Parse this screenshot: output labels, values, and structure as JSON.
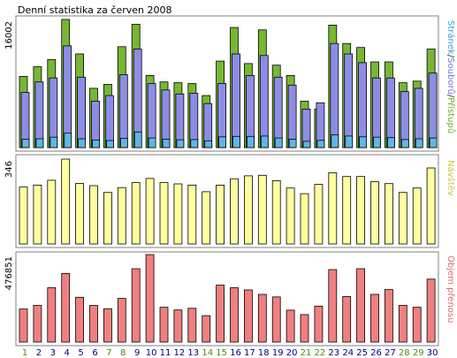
{
  "chart_data": {
    "title": "Denní statistika za červen 2008",
    "type": "bar",
    "days": [
      "1",
      "2",
      "3",
      "4",
      "5",
      "6",
      "7",
      "8",
      "9",
      "10",
      "11",
      "12",
      "13",
      "14",
      "15",
      "16",
      "17",
      "18",
      "19",
      "20",
      "21",
      "22",
      "23",
      "24",
      "25",
      "26",
      "27",
      "28",
      "29",
      "30"
    ],
    "weekend_days": [
      "1",
      "7",
      "8",
      "14",
      "15",
      "21",
      "22",
      "28",
      "29"
    ],
    "colors": {
      "frame": "#808080",
      "hits": "#77b733",
      "files": "#8d8de6",
      "pages": "#5fb6e4",
      "visits": "#ffff9f",
      "kbytes": "#f08080",
      "weekday_label": "#000080",
      "weekend_label": "#4a8a14"
    },
    "panels": [
      {
        "id": "hits",
        "max_label": "16002",
        "ylim": [
          0,
          16002
        ],
        "right_label_parts": [
          {
            "text": "Stránek",
            "color": "#3e9ed8"
          },
          {
            "text": "/",
            "color": "#333333"
          },
          {
            "text": "Souborů",
            "color": "#7373d6"
          },
          {
            "text": "/",
            "color": "#333333"
          },
          {
            "text": "Přístupů",
            "color": "#6fae2c"
          }
        ],
        "series": [
          {
            "name": "Přístupů",
            "values": [
              8900,
              10100,
              11000,
              16002,
              11700,
              7400,
              7900,
              12600,
              15400,
              9000,
              8200,
              8100,
              8000,
              6500,
              10800,
              15000,
              10500,
              14700,
              10300,
              9000,
              5800,
              4800,
              15300,
              13000,
              12500,
              10700,
              10700,
              8100,
              8300,
              12300
            ]
          },
          {
            "name": "Souborů",
            "values": [
              6900,
              8200,
              8700,
              12700,
              8800,
              5800,
              6500,
              9100,
              12300,
              8000,
              7200,
              6700,
              6800,
              5500,
              8000,
              11700,
              9000,
              11500,
              8800,
              7800,
              4800,
              5600,
              13000,
              11700,
              10600,
              8700,
              8700,
              7000,
              7400,
              9300
            ]
          },
          {
            "name": "Stránek",
            "values": [
              1050,
              1100,
              1300,
              1800,
              1100,
              950,
              880,
              1150,
              1950,
              1200,
              1050,
              980,
              1000,
              850,
              1350,
              1400,
              1400,
              1450,
              1200,
              1050,
              780,
              900,
              1600,
              1450,
              1350,
              1300,
              1250,
              1000,
              1100,
              1200
            ]
          }
        ]
      },
      {
        "id": "visits",
        "max_label": "346",
        "ylim": [
          0,
          346
        ],
        "right_label_parts": [
          {
            "text": "Návštěv",
            "color": "#c8c84a"
          }
        ],
        "series": [
          {
            "name": "Návštěv",
            "values": [
              232,
              240,
              260,
              346,
              247,
              238,
              210,
              230,
              250,
              267,
              250,
              245,
              240,
              213,
              240,
              266,
              278,
              280,
              258,
              228,
              205,
              243,
              290,
              275,
              275,
              254,
              246,
              210,
              228,
              310
            ]
          }
        ]
      },
      {
        "id": "kbytes",
        "max_label": "476851",
        "ylim": [
          0,
          476851
        ],
        "right_label_parts": [
          {
            "text": "Objem přenosu",
            "color": "#e06a6a"
          }
        ],
        "series": [
          {
            "name": "Objem přenosu",
            "values": [
              180000,
              200000,
              296000,
              374000,
              244000,
              200000,
              182000,
              238000,
              400000,
              476851,
              190000,
              175000,
              184000,
              144000,
              310000,
              296000,
              284000,
              260000,
              246000,
              174000,
              150000,
              196000,
              395000,
              248000,
              400000,
              260000,
              286000,
              200000,
              190000,
              343000
            ]
          }
        ]
      }
    ]
  }
}
